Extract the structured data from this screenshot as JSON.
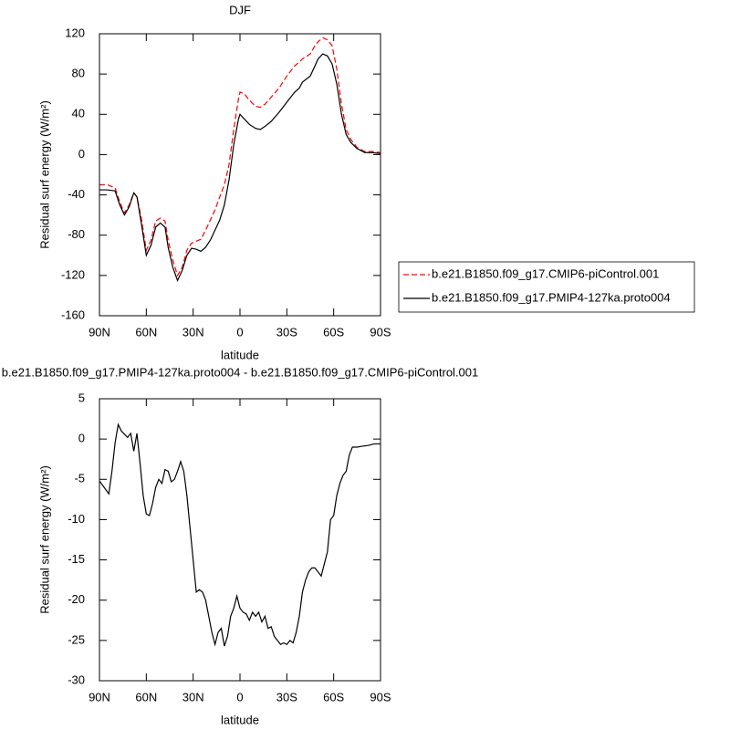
{
  "chart_data": [
    {
      "type": "line",
      "title": "DJF",
      "xlabel": "latitude",
      "ylabel": "Residual surf energy (W/m²)",
      "xlim": [
        90,
        -90
      ],
      "xticks": [
        {
          "value": 90,
          "label": "90N"
        },
        {
          "value": 60,
          "label": "60N"
        },
        {
          "value": 30,
          "label": "30N"
        },
        0,
        {
          "value": -30,
          "label": "30S"
        },
        {
          "value": -60,
          "label": "60S"
        },
        {
          "value": -90,
          "label": "90S"
        }
      ],
      "ylim": [
        -160,
        120
      ],
      "yticks": [
        120,
        80,
        40,
        0,
        -40,
        -80,
        -120,
        -160
      ],
      "legend": "right",
      "x": [
        90,
        85,
        80,
        77,
        74,
        71,
        68,
        66,
        63,
        60,
        57,
        54,
        51,
        48,
        46,
        43,
        40,
        37,
        34,
        31,
        28,
        25,
        22,
        19,
        16,
        13,
        10,
        7,
        4,
        1,
        0,
        -3,
        -6,
        -10,
        -13,
        -16,
        -20,
        -25,
        -30,
        -35,
        -38,
        -40,
        -45,
        -48,
        -50,
        -53,
        -56,
        -59,
        -62,
        -65,
        -68,
        -71,
        -75,
        -80,
        -85,
        -90
      ],
      "series": [
        {
          "name": "b.e21.B1850.f09_g17.CMIP6-piControl.001",
          "color": "#ff0000",
          "line_style": "dashed",
          "values": [
            -30,
            -30,
            -33,
            -47,
            -58,
            -50,
            -38,
            -42,
            -65,
            -95,
            -85,
            -66,
            -63,
            -66,
            -85,
            -105,
            -120,
            -112,
            -95,
            -88,
            -86,
            -84,
            -75,
            -65,
            -55,
            -42,
            -30,
            -10,
            25,
            55,
            62,
            60,
            54,
            48,
            47,
            50,
            57,
            66,
            78,
            88,
            92,
            95,
            100,
            108,
            112,
            116,
            114,
            108,
            85,
            50,
            25,
            15,
            7,
            3,
            3,
            2
          ]
        },
        {
          "name": "b.e21.B1850.f09_g17.PMIP4-127ka.proto004",
          "color": "#000000",
          "line_style": "solid",
          "values": [
            -35,
            -35,
            -36,
            -50,
            -60,
            -52,
            -38,
            -42,
            -70,
            -100,
            -90,
            -72,
            -68,
            -72,
            -92,
            -112,
            -125,
            -115,
            -100,
            -93,
            -94,
            -96,
            -92,
            -85,
            -75,
            -65,
            -50,
            -25,
            10,
            35,
            40,
            35,
            30,
            26,
            25,
            28,
            33,
            42,
            52,
            62,
            66,
            72,
            78,
            88,
            95,
            100,
            98,
            90,
            70,
            40,
            20,
            12,
            6,
            2,
            2,
            1
          ]
        }
      ]
    },
    {
      "type": "line",
      "title": "b.e21.B1850.f09_g17.PMIP4-127ka.proto004 - b.e21.B1850.f09_g17.CMIP6-piControl.001",
      "xlabel": "latitude",
      "ylabel": "Residual surf energy (W/m²)",
      "xlim": [
        90,
        -90
      ],
      "xticks": [
        {
          "value": 90,
          "label": "90N"
        },
        {
          "value": 60,
          "label": "60N"
        },
        {
          "value": 30,
          "label": "30N"
        },
        0,
        {
          "value": -30,
          "label": "30S"
        },
        {
          "value": -60,
          "label": "60S"
        },
        {
          "value": -90,
          "label": "90S"
        }
      ],
      "ylim": [
        -30,
        5
      ],
      "yticks": [
        5,
        0,
        -5,
        -10,
        -15,
        -20,
        -25,
        -30
      ],
      "x": [
        90,
        87,
        84,
        82,
        80,
        78,
        76,
        74,
        72,
        70,
        68,
        66,
        64,
        62,
        60,
        58,
        56,
        54,
        52,
        50,
        48,
        46,
        44,
        42,
        40,
        38,
        36,
        34,
        32,
        30,
        28,
        26,
        24,
        22,
        20,
        18,
        16,
        14,
        12,
        10,
        8,
        6,
        4,
        2,
        0,
        -2,
        -4,
        -6,
        -8,
        -10,
        -12,
        -14,
        -16,
        -18,
        -20,
        -22,
        -24,
        -26,
        -28,
        -30,
        -32,
        -34,
        -36,
        -38,
        -40,
        -42,
        -44,
        -46,
        -48,
        -50,
        -52,
        -54,
        -56,
        -58,
        -60,
        -62,
        -64,
        -66,
        -68,
        -70,
        -72,
        -75,
        -78,
        -82,
        -86,
        -90
      ],
      "series": [
        {
          "color": "#000000",
          "line_style": "solid",
          "values": [
            -5.2,
            -6,
            -6.8,
            -4,
            -0.5,
            1.8,
            1,
            0.6,
            0.2,
            0.7,
            -1.5,
            0.7,
            -3,
            -7,
            -9.3,
            -9.5,
            -8,
            -6,
            -5,
            -5.5,
            -3.8,
            -4,
            -5.3,
            -5,
            -4,
            -2.8,
            -4,
            -7,
            -11,
            -15,
            -19,
            -18.7,
            -19,
            -20,
            -22,
            -24,
            -25.5,
            -24,
            -23.5,
            -25.7,
            -24.5,
            -22,
            -21,
            -19.5,
            -21,
            -21.5,
            -21.7,
            -22.5,
            -21.5,
            -22,
            -21.5,
            -22.7,
            -22,
            -23.5,
            -23.3,
            -24.5,
            -25,
            -25.5,
            -25.3,
            -25.5,
            -25,
            -25.3,
            -24,
            -22,
            -19,
            -17.5,
            -16.5,
            -16,
            -16,
            -16.5,
            -17,
            -15.5,
            -14,
            -10,
            -9.5,
            -7,
            -5.5,
            -4.5,
            -4,
            -2,
            -1,
            -1,
            -0.9,
            -0.8,
            -0.6,
            -0.6
          ]
        }
      ]
    }
  ]
}
